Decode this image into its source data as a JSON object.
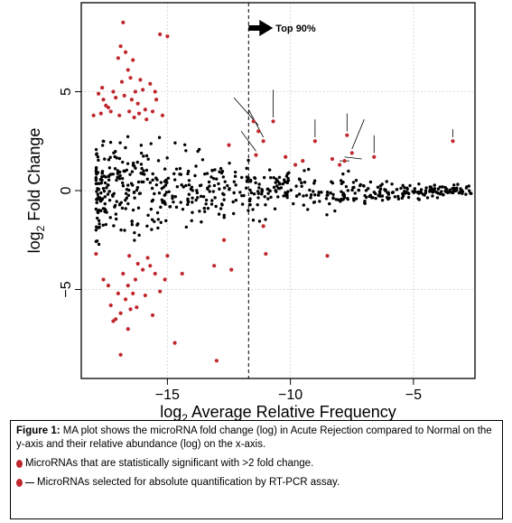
{
  "chart_data": {
    "type": "scatter",
    "xlabel_main": "log",
    "xlabel_sub": "2",
    "xlabel_rest": " Average Relative Frequency",
    "ylabel_main": "log",
    "ylabel_sub": "2",
    "ylabel_rest": " Fold Change",
    "xlim": [
      -18.5,
      -2.5
    ],
    "ylim": [
      -9.5,
      9.5
    ],
    "xticks": [
      -15,
      -10,
      -5
    ],
    "xtick_labels": [
      "−15",
      "−10",
      "−5"
    ],
    "yticks": [
      -5,
      0,
      5
    ],
    "ytick_labels": [
      "−5",
      "0",
      "5"
    ],
    "grid": true,
    "threshold_x": -11.7,
    "threshold_label": "Top 90%",
    "colors": {
      "black": "#000000",
      "significant": "#c0282d",
      "grid": "#d9d9d9"
    },
    "significant_points": [
      [
        -18.0,
        3.8
      ],
      [
        -17.8,
        4.9
      ],
      [
        -17.6,
        4.6
      ],
      [
        -17.4,
        4.2
      ],
      [
        -17.2,
        5.0
      ],
      [
        -17.0,
        6.7
      ],
      [
        -16.9,
        7.3
      ],
      [
        -16.8,
        8.5
      ],
      [
        -16.7,
        7.0
      ],
      [
        -16.6,
        6.1
      ],
      [
        -16.5,
        5.7
      ],
      [
        -16.4,
        6.6
      ],
      [
        -16.3,
        5.0
      ],
      [
        -16.2,
        4.4
      ],
      [
        -16.0,
        5.1
      ],
      [
        -15.9,
        4.1
      ],
      [
        -15.7,
        5.4
      ],
      [
        -15.5,
        5.0
      ],
      [
        -15.3,
        7.9
      ],
      [
        -15.0,
        7.8
      ],
      [
        -17.7,
        3.9
      ],
      [
        -17.5,
        4.3
      ],
      [
        -17.3,
        4.0
      ],
      [
        -17.1,
        4.7
      ],
      [
        -16.95,
        3.8
      ],
      [
        -16.75,
        4.8
      ],
      [
        -16.55,
        4.0
      ],
      [
        -16.35,
        3.7
      ],
      [
        -16.15,
        3.9
      ],
      [
        -15.85,
        3.6
      ],
      [
        -15.6,
        4.0
      ],
      [
        -17.65,
        5.2
      ],
      [
        -16.85,
        5.5
      ],
      [
        -16.45,
        4.6
      ],
      [
        -16.1,
        5.6
      ],
      [
        -15.45,
        4.6
      ],
      [
        -15.2,
        3.8
      ],
      [
        -17.9,
        -3.2
      ],
      [
        -17.6,
        -4.5
      ],
      [
        -17.4,
        -4.8
      ],
      [
        -17.3,
        -5.8
      ],
      [
        -17.2,
        -6.6
      ],
      [
        -17.0,
        -5.2
      ],
      [
        -16.9,
        -6.2
      ],
      [
        -16.8,
        -4.2
      ],
      [
        -16.7,
        -5.5
      ],
      [
        -16.6,
        -4.8
      ],
      [
        -16.5,
        -6.0
      ],
      [
        -16.4,
        -5.2
      ],
      [
        -16.3,
        -4.5
      ],
      [
        -16.2,
        -3.7
      ],
      [
        -16.0,
        -4.0
      ],
      [
        -15.9,
        -5.3
      ],
      [
        -15.7,
        -3.8
      ],
      [
        -15.5,
        -4.2
      ],
      [
        -15.3,
        -5.1
      ],
      [
        -15.1,
        -4.5
      ],
      [
        -16.9,
        -8.3
      ],
      [
        -16.6,
        -7.0
      ],
      [
        -14.7,
        -7.7
      ],
      [
        -13.0,
        -8.6
      ],
      [
        -17.1,
        -6.5
      ],
      [
        -16.55,
        -3.3
      ],
      [
        -16.25,
        -5.9
      ],
      [
        -15.8,
        -3.4
      ],
      [
        -15.6,
        -6.3
      ],
      [
        -15.0,
        -3.3
      ],
      [
        -14.4,
        -4.2
      ],
      [
        -13.1,
        -3.8
      ],
      [
        -12.7,
        -2.5
      ],
      [
        -12.4,
        -4.0
      ],
      [
        -11.0,
        -3.2
      ],
      [
        -8.5,
        -3.3
      ],
      [
        -11.1,
        -1.8
      ],
      [
        -12.5,
        2.3
      ],
      [
        -11.4,
        1.8
      ],
      [
        -11.1,
        2.5
      ],
      [
        -10.7,
        3.5
      ],
      [
        -10.2,
        1.7
      ],
      [
        -9.8,
        1.3
      ],
      [
        -9.5,
        1.5
      ],
      [
        -9.0,
        2.5
      ],
      [
        -8.3,
        1.6
      ],
      [
        -8.0,
        1.3
      ],
      [
        -7.8,
        1.5
      ],
      [
        -7.7,
        2.8
      ],
      [
        -7.5,
        1.9
      ],
      [
        -6.6,
        1.7
      ],
      [
        -3.4,
        2.5
      ],
      [
        -11.5,
        3.5
      ],
      [
        -11.3,
        3.0
      ]
    ],
    "callout_lines": [
      [
        -11.3,
        3.3,
        -12.3,
        4.7
      ],
      [
        -11.1,
        2.7,
        -11.7,
        4.1
      ],
      [
        -10.7,
        3.7,
        -10.7,
        5.1
      ],
      [
        -9.0,
        2.7,
        -9.0,
        3.6
      ],
      [
        -7.7,
        3.0,
        -7.7,
        3.9
      ],
      [
        -7.5,
        2.1,
        -7.0,
        3.6
      ],
      [
        -6.6,
        1.9,
        -6.6,
        2.8
      ],
      [
        -3.4,
        2.7,
        -3.4,
        3.1
      ],
      [
        -11.4,
        2.0,
        -12.0,
        3.0
      ],
      [
        -8.0,
        1.5,
        -7.6,
        1.5
      ],
      [
        -7.8,
        1.7,
        -7.1,
        1.6
      ]
    ]
  },
  "caption": {
    "lead": "Figure 1:",
    "text": " MA plot shows the microRNA fold change (log) in Acute Rejection compared to Normal on the y-axis and their relative abundance (log) on the x-axis.",
    "legend1": "MicroRNAs that are statistically significant with >2 fold change.",
    "legend2": "MicroRNAs selected for absolute quantification by RT-PCR assay."
  }
}
